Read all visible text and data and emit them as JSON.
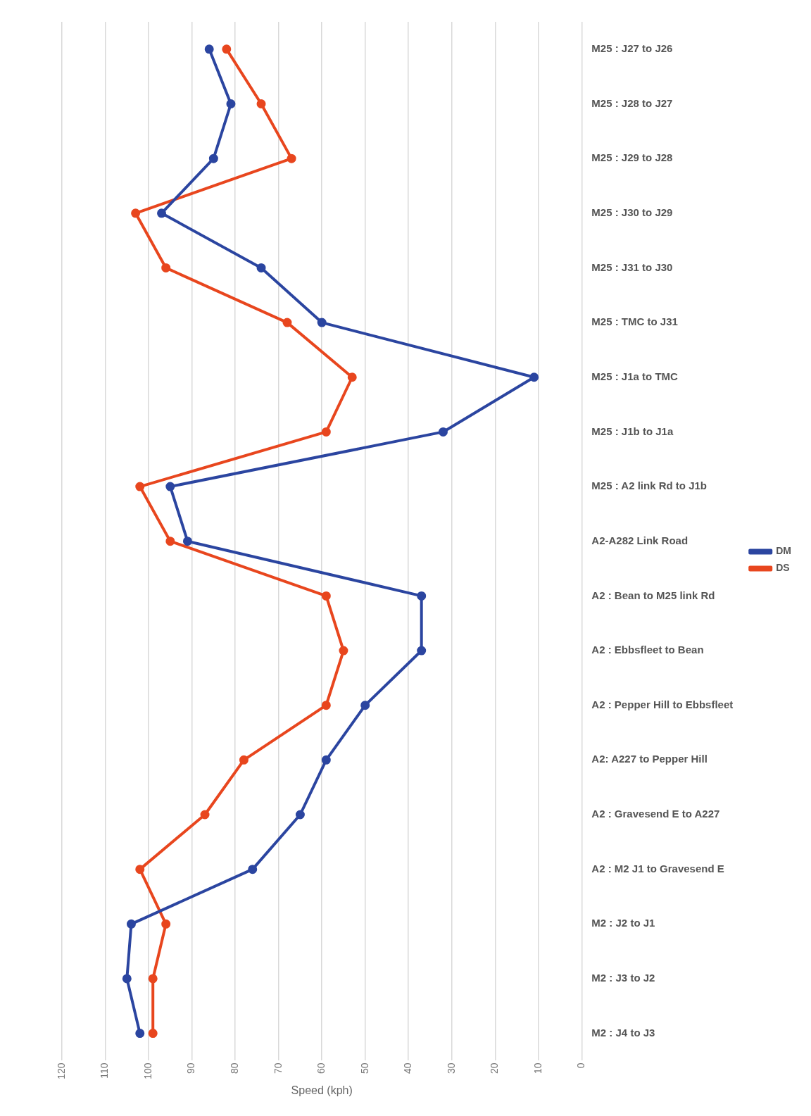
{
  "chart_data": {
    "type": "line",
    "orientation": "horizontal",
    "xlabel": "Speed (kph)",
    "categories": [
      "M25 : J27 to J26",
      "M25 : J28 to J27",
      "M25 : J29 to J28",
      "M25 : J30 to J29",
      "M25 : J31 to J30",
      "M25 : TMC to J31",
      "M25 : J1a to TMC",
      "M25 : J1b to J1a",
      "M25 : A2 link Rd to J1b",
      "A2-A282 Link Road",
      "A2 : Bean to M25 link Rd",
      "A2 : Ebbsfleet to Bean",
      "A2 : Pepper Hill to Ebbsfleet",
      "A2: A227 to Pepper Hill",
      "A2 : Gravesend E to A227",
      "A2 : M2 J1 to Gravesend E",
      "M2 : J2 to J1",
      "M2 : J3 to J2",
      "M2 : J4 to J3"
    ],
    "series": [
      {
        "name": "DM",
        "color": "#2b45a0",
        "values": [
          86,
          81,
          85,
          97,
          74,
          60,
          11,
          32,
          95,
          91,
          37,
          37,
          50,
          59,
          65,
          76,
          104,
          105,
          102
        ]
      },
      {
        "name": "DS",
        "color": "#e8461e",
        "values": [
          82,
          74,
          67,
          103,
          96,
          68,
          53,
          59,
          102,
          95,
          59,
          55,
          59,
          78,
          87,
          102,
          96,
          99,
          99
        ]
      }
    ],
    "xlim": [
      120,
      0
    ],
    "xticks": [
      120,
      110,
      100,
      90,
      80,
      70,
      60,
      50,
      40,
      30,
      20,
      10,
      0
    ],
    "grid": "x",
    "legend": "right",
    "marker": "circle"
  }
}
